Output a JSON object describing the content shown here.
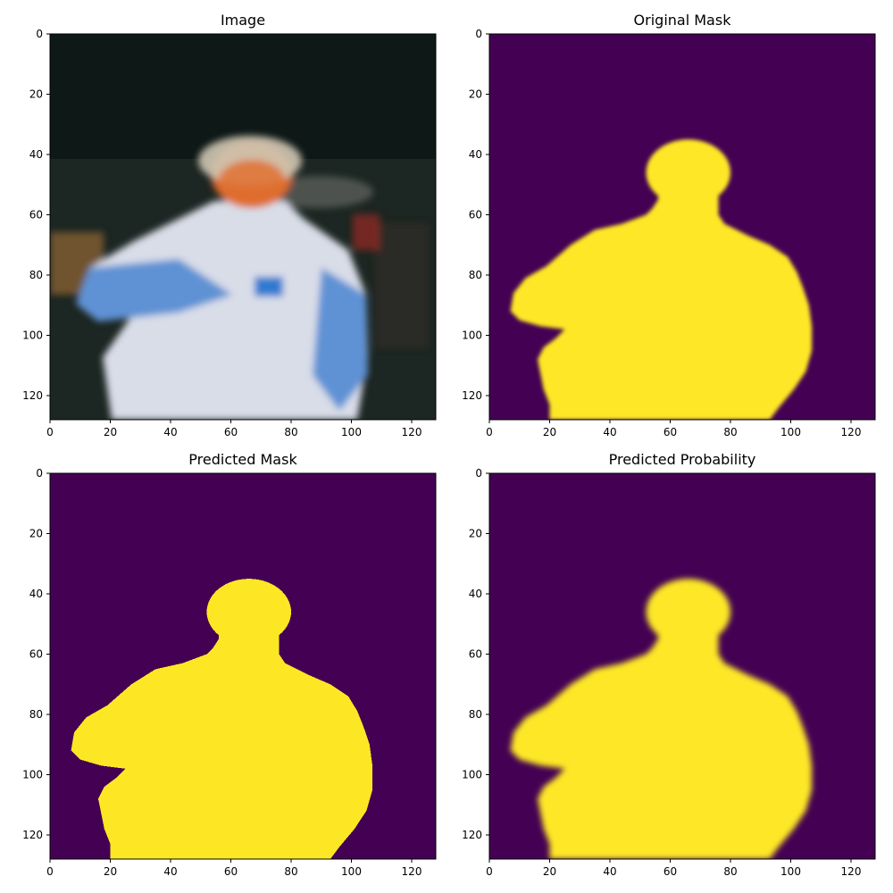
{
  "chart_data": [
    {
      "type": "heatmap",
      "title": "Image",
      "content": "photo",
      "xlim": [
        0,
        128
      ],
      "ylim": [
        128,
        0
      ],
      "xticks": [
        0,
        20,
        40,
        60,
        80,
        100,
        120
      ],
      "yticks": [
        0,
        20,
        40,
        60,
        80,
        100,
        120
      ],
      "grid": false
    },
    {
      "type": "heatmap",
      "title": "Original Mask",
      "content": "mask",
      "colormap": "viridis",
      "colors": {
        "background": "#440154",
        "foreground": "#fde725"
      },
      "xlim": [
        0,
        128
      ],
      "ylim": [
        128,
        0
      ],
      "xticks": [
        0,
        20,
        40,
        60,
        80,
        100,
        120
      ],
      "yticks": [
        0,
        20,
        40,
        60,
        80,
        100,
        120
      ],
      "grid": false
    },
    {
      "type": "heatmap",
      "title": "Predicted Mask",
      "content": "mask",
      "colormap": "viridis",
      "colors": {
        "background": "#440154",
        "foreground": "#fde725"
      },
      "xlim": [
        0,
        128
      ],
      "ylim": [
        128,
        0
      ],
      "xticks": [
        0,
        20,
        40,
        60,
        80,
        100,
        120
      ],
      "yticks": [
        0,
        20,
        40,
        60,
        80,
        100,
        120
      ],
      "grid": false
    },
    {
      "type": "heatmap",
      "title": "Predicted Probability",
      "content": "mask",
      "colormap": "viridis",
      "colors": {
        "background": "#440154",
        "foreground": "#fde725"
      },
      "xlim": [
        0,
        128
      ],
      "ylim": [
        128,
        0
      ],
      "xticks": [
        0,
        20,
        40,
        60,
        80,
        100,
        120
      ],
      "yticks": [
        0,
        20,
        40,
        60,
        80,
        100,
        120
      ],
      "grid": false
    }
  ],
  "silhouette": {
    "description_units": "pixel row/column in 128x128 image",
    "head": {
      "cx": 66,
      "cy": 46,
      "rx": 14,
      "ry": 11
    },
    "body_outline": [
      [
        56,
        55
      ],
      [
        54,
        58
      ],
      [
        52,
        60
      ],
      [
        44,
        63
      ],
      [
        35,
        65
      ],
      [
        27,
        70
      ],
      [
        19,
        77
      ],
      [
        12,
        81
      ],
      [
        8,
        86
      ],
      [
        7,
        92
      ],
      [
        10,
        95
      ],
      [
        17,
        97
      ],
      [
        25,
        98
      ],
      [
        22,
        101
      ],
      [
        18,
        104
      ],
      [
        16,
        108
      ],
      [
        17,
        113
      ],
      [
        18,
        118
      ],
      [
        20,
        123
      ],
      [
        20,
        128
      ],
      [
        93,
        128
      ],
      [
        96,
        124
      ],
      [
        101,
        118
      ],
      [
        105,
        112
      ],
      [
        107,
        105
      ],
      [
        107,
        97
      ],
      [
        106,
        90
      ],
      [
        104,
        84
      ],
      [
        102,
        79
      ],
      [
        99,
        74
      ],
      [
        93,
        70
      ],
      [
        86,
        67
      ],
      [
        78,
        63
      ],
      [
        76,
        60
      ],
      [
        75,
        56
      ]
    ]
  }
}
